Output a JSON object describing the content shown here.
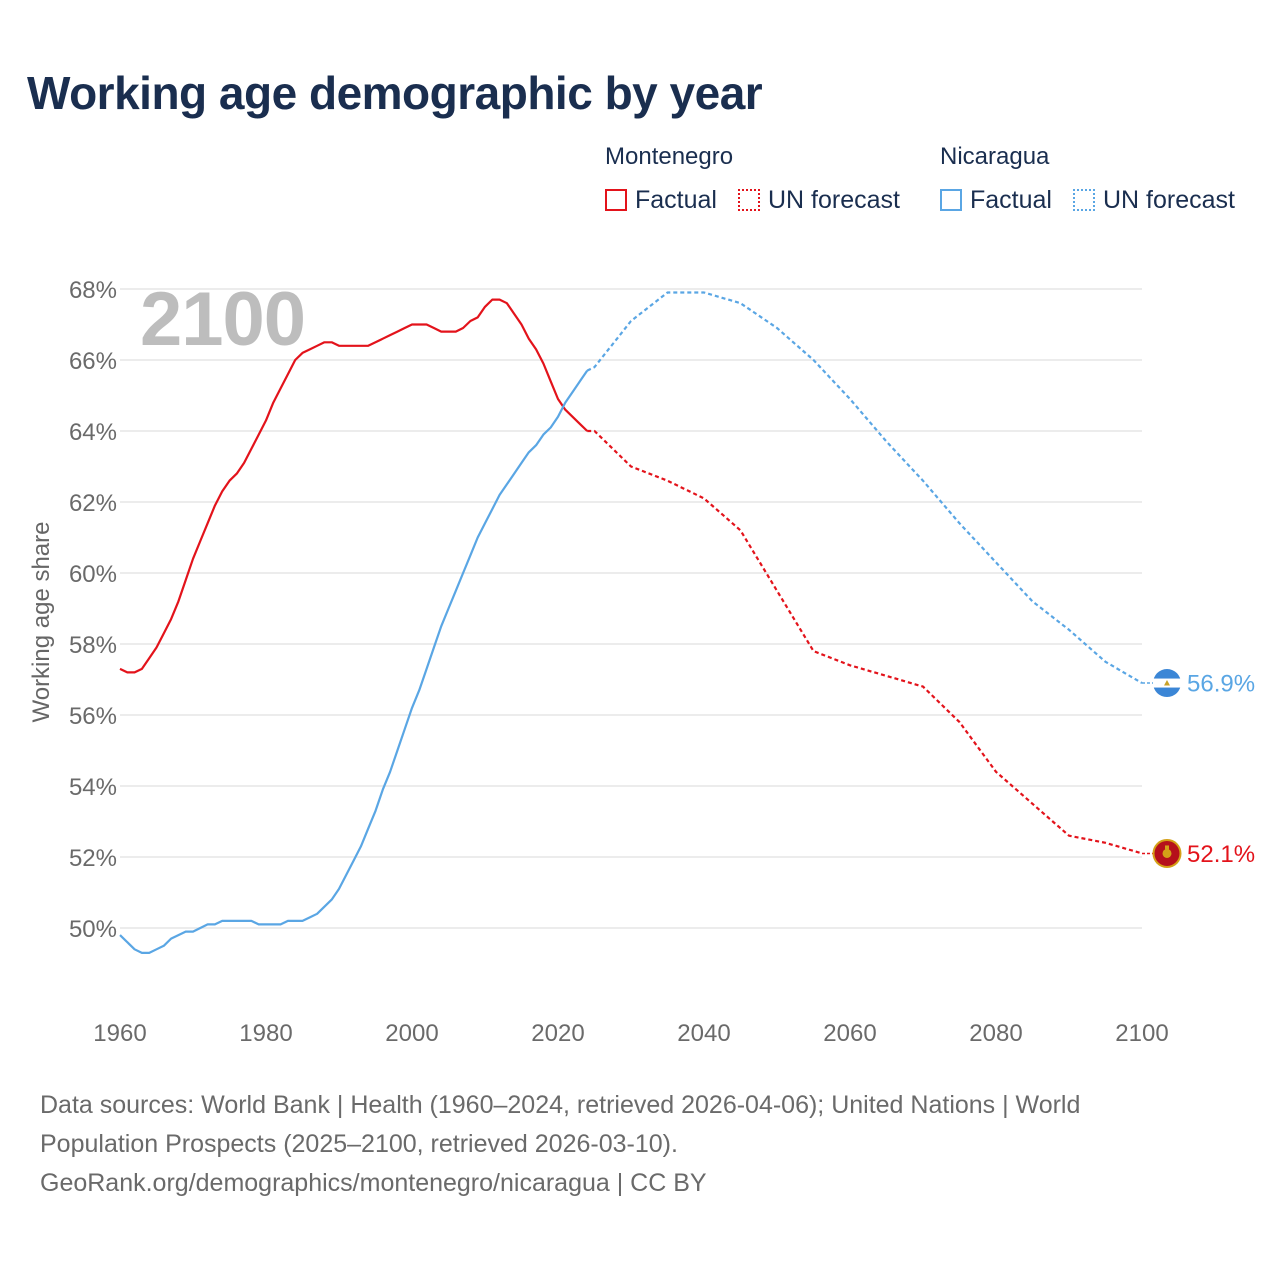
{
  "title": "Working age demographic by year",
  "year_display": "2100",
  "legend": {
    "groups": [
      {
        "name": "Montenegro",
        "factual": "Factual",
        "forecast": "UN forecast",
        "color": "#e3131b"
      },
      {
        "name": "Nicaragua",
        "factual": "Factual",
        "forecast": "UN forecast",
        "color": "#5aa6e4"
      }
    ]
  },
  "footer": {
    "sources": "Data sources: World Bank | Health (1960–2024, retrieved 2026-04-06); United Nations | World Population Prospects (2025–2100, retrieved 2026-03-10).",
    "link": "GeoRank.org/demographics/montenegro/nicaragua | CC BY"
  },
  "chart_data": {
    "type": "line",
    "title": "Working age demographic by year",
    "xlabel": "",
    "ylabel": "Working age share",
    "xlim": [
      1960,
      2100
    ],
    "ylim": [
      48,
      68
    ],
    "x_ticks": [
      "1960",
      "1980",
      "2000",
      "2020",
      "2040",
      "2060",
      "2080",
      "2100"
    ],
    "y_ticks": [
      "50%",
      "52%",
      "54%",
      "56%",
      "58%",
      "60%",
      "62%",
      "64%",
      "66%",
      "68%"
    ],
    "grid": true,
    "factual_end_year": 2024,
    "series": [
      {
        "name": "Montenegro",
        "color": "#e3131b",
        "end_label": "52.1%",
        "x": [
          1960,
          1961,
          1962,
          1963,
          1964,
          1965,
          1966,
          1967,
          1968,
          1969,
          1970,
          1971,
          1972,
          1973,
          1974,
          1975,
          1976,
          1977,
          1978,
          1979,
          1980,
          1981,
          1982,
          1983,
          1984,
          1985,
          1986,
          1987,
          1988,
          1989,
          1990,
          1991,
          1992,
          1993,
          1994,
          1995,
          1996,
          1997,
          1998,
          1999,
          2000,
          2001,
          2002,
          2003,
          2004,
          2005,
          2006,
          2007,
          2008,
          2009,
          2010,
          2011,
          2012,
          2013,
          2014,
          2015,
          2016,
          2017,
          2018,
          2019,
          2020,
          2021,
          2022,
          2023,
          2024,
          2025,
          2030,
          2035,
          2040,
          2045,
          2050,
          2055,
          2060,
          2065,
          2070,
          2075,
          2080,
          2085,
          2090,
          2095,
          2100
        ],
        "y": [
          57.3,
          57.2,
          57.2,
          57.3,
          57.6,
          57.9,
          58.3,
          58.7,
          59.2,
          59.8,
          60.4,
          60.9,
          61.4,
          61.9,
          62.3,
          62.6,
          62.8,
          63.1,
          63.5,
          63.9,
          64.3,
          64.8,
          65.2,
          65.6,
          66.0,
          66.2,
          66.3,
          66.4,
          66.5,
          66.5,
          66.4,
          66.4,
          66.4,
          66.4,
          66.4,
          66.5,
          66.6,
          66.7,
          66.8,
          66.9,
          67.0,
          67.0,
          67.0,
          66.9,
          66.8,
          66.8,
          66.8,
          66.9,
          67.1,
          67.2,
          67.5,
          67.7,
          67.7,
          67.6,
          67.3,
          67.0,
          66.6,
          66.3,
          65.9,
          65.4,
          64.9,
          64.6,
          64.4,
          64.2,
          64.0,
          64.0,
          63.0,
          62.6,
          62.1,
          61.2,
          59.5,
          57.8,
          57.4,
          57.1,
          56.8,
          55.8,
          54.4,
          53.5,
          52.6,
          52.4,
          52.1
        ]
      },
      {
        "name": "Nicaragua",
        "color": "#5aa6e4",
        "end_label": "56.9%",
        "x": [
          1960,
          1961,
          1962,
          1963,
          1964,
          1965,
          1966,
          1967,
          1968,
          1969,
          1970,
          1971,
          1972,
          1973,
          1974,
          1975,
          1976,
          1977,
          1978,
          1979,
          1980,
          1981,
          1982,
          1983,
          1984,
          1985,
          1986,
          1987,
          1988,
          1989,
          1990,
          1991,
          1992,
          1993,
          1994,
          1995,
          1996,
          1997,
          1998,
          1999,
          2000,
          2001,
          2002,
          2003,
          2004,
          2005,
          2006,
          2007,
          2008,
          2009,
          2010,
          2011,
          2012,
          2013,
          2014,
          2015,
          2016,
          2017,
          2018,
          2019,
          2020,
          2021,
          2022,
          2023,
          2024,
          2025,
          2030,
          2035,
          2040,
          2045,
          2050,
          2055,
          2060,
          2065,
          2070,
          2075,
          2080,
          2085,
          2090,
          2095,
          2100
        ],
        "y": [
          49.8,
          49.6,
          49.4,
          49.3,
          49.3,
          49.4,
          49.5,
          49.7,
          49.8,
          49.9,
          49.9,
          50.0,
          50.1,
          50.1,
          50.2,
          50.2,
          50.2,
          50.2,
          50.2,
          50.1,
          50.1,
          50.1,
          50.1,
          50.2,
          50.2,
          50.2,
          50.3,
          50.4,
          50.6,
          50.8,
          51.1,
          51.5,
          51.9,
          52.3,
          52.8,
          53.3,
          53.9,
          54.4,
          55.0,
          55.6,
          56.2,
          56.7,
          57.3,
          57.9,
          58.5,
          59.0,
          59.5,
          60.0,
          60.5,
          61.0,
          61.4,
          61.8,
          62.2,
          62.5,
          62.8,
          63.1,
          63.4,
          63.6,
          63.9,
          64.1,
          64.4,
          64.8,
          65.1,
          65.4,
          65.7,
          65.8,
          67.1,
          67.9,
          67.9,
          67.6,
          66.9,
          66.0,
          64.9,
          63.7,
          62.6,
          61.4,
          60.3,
          59.2,
          58.4,
          57.5,
          56.9
        ]
      }
    ]
  }
}
